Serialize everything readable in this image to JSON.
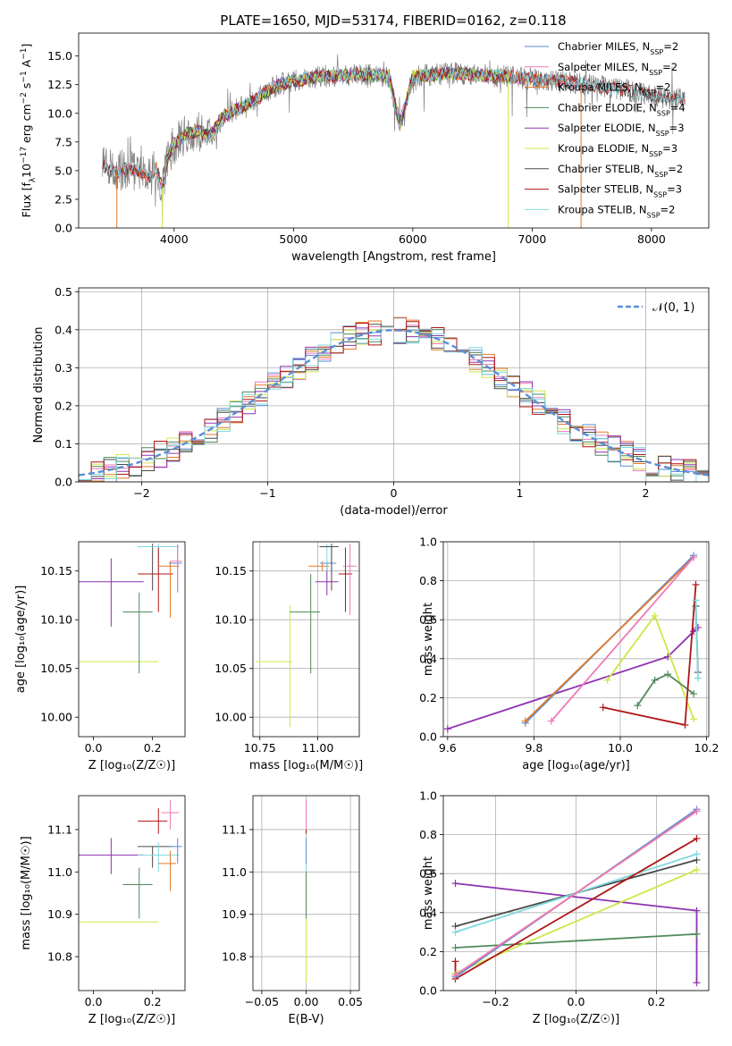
{
  "figure": {
    "title": "PLATE=1650, MJD=53174, FIBERID=0162, z=0.118"
  },
  "colors": {
    "Chabrier MILES": "#5b8ed6",
    "Salpeter MILES": "#ee7ab8",
    "Kroupa MILES": "#e07a2a",
    "Chabrier ELODIE": "#4f8a5c",
    "Salpeter ELODIE": "#8e33b0",
    "Kroupa ELODIE": "#cde84a",
    "Chabrier STELIB": "#4a4a4a",
    "Salpeter STELIB": "#b01515",
    "Kroupa STELIB": "#7fd8e0",
    "normal": "#5b8ed6"
  },
  "chart_data": [
    {
      "id": "spectrum",
      "type": "line",
      "title": "PLATE=1650, MJD=53174, FIBERID=0162, z=0.118",
      "xlabel": "wavelength [Angstrom, rest frame]",
      "ylabel": "Flux [f_λ 10^-17 erg cm^-2 s^-1 A^-1]",
      "xlim": [
        3200,
        8480
      ],
      "ylim": [
        0,
        17
      ],
      "xticks": [
        4000,
        5000,
        6000,
        7000,
        8000
      ],
      "yticks": [
        0.0,
        2.5,
        5.0,
        7.5,
        10.0,
        12.5,
        15.0
      ],
      "grid": false,
      "legend_position": "top-right",
      "observed_spectrum": {
        "x_range": [
          3400,
          8280
        ],
        "points": 1400
      },
      "continuum": {
        "x": [
          3400,
          3500,
          3600,
          3700,
          3800,
          3850,
          3900,
          3950,
          4000,
          4100,
          4200,
          4300,
          4400,
          4500,
          4600,
          4700,
          4800,
          4900,
          5000,
          5200,
          5400,
          5600,
          5800,
          5890,
          6000,
          6200,
          6400,
          6600,
          6800,
          7000,
          7200,
          7400,
          7600,
          7800,
          8000,
          8280
        ],
        "y": [
          5.4,
          4.8,
          5.2,
          5.0,
          4.4,
          5.3,
          3.5,
          6.3,
          7.3,
          8.2,
          8.4,
          8.0,
          9.6,
          10.2,
          10.7,
          11.3,
          12.1,
          12.6,
          12.8,
          13.2,
          13.3,
          13.4,
          13.2,
          9.0,
          13.2,
          13.4,
          13.5,
          13.3,
          13.2,
          13.0,
          12.8,
          12.6,
          12.3,
          12.0,
          11.5,
          11.2
        ]
      },
      "series": [
        {
          "name": "Chabrier MILES",
          "nssp": "2",
          "x_range": [
            3520,
            7410
          ]
        },
        {
          "name": "Salpeter MILES",
          "nssp": "2",
          "x_range": [
            3520,
            7410
          ]
        },
        {
          "name": "Kroupa MILES",
          "nssp": "2",
          "x_range": [
            3520,
            7410
          ]
        },
        {
          "name": "Chabrier ELODIE",
          "nssp": "4",
          "x_range": [
            3900,
            6800
          ]
        },
        {
          "name": "Salpeter ELODIE",
          "nssp": "3",
          "x_range": [
            3900,
            6800
          ]
        },
        {
          "name": "Kroupa ELODIE",
          "nssp": "3",
          "x_range": [
            3900,
            6800
          ]
        },
        {
          "name": "Chabrier STELIB",
          "nssp": "2",
          "x_range": [
            3400,
            8280
          ]
        },
        {
          "name": "Salpeter STELIB",
          "nssp": "3",
          "x_range": [
            3400,
            8280
          ]
        },
        {
          "name": "Kroupa STELIB",
          "nssp": "2",
          "x_range": [
            3400,
            8280
          ]
        }
      ],
      "vertical_edges": [
        {
          "x": 3520,
          "series": "Kroupa MILES"
        },
        {
          "x": 3900,
          "series": "Kroupa ELODIE"
        },
        {
          "x": 6800,
          "series": "Kroupa ELODIE"
        },
        {
          "x": 7410,
          "series": "Kroupa MILES"
        }
      ]
    },
    {
      "id": "residuals",
      "type": "line",
      "xlabel": "(data-model)/error",
      "ylabel": "Normed distribution",
      "xlim": [
        -2.5,
        2.5
      ],
      "ylim": [
        0,
        0.51
      ],
      "xticks": [
        -2,
        -1,
        0,
        1,
        2
      ],
      "yticks": [
        0.0,
        0.1,
        0.2,
        0.3,
        0.4,
        0.5
      ],
      "grid": true,
      "legend_position": "top-right",
      "histogram_bins": {
        "start": -2.5,
        "width": 0.1,
        "count": 50
      },
      "series": [
        {
          "name": "N(0,1)",
          "label_prefix": "𝒩(0, 1)",
          "type": "gaussian",
          "mean": 0,
          "sigma": 1,
          "style": "dashed"
        }
      ],
      "histograms": [
        "Chabrier MILES",
        "Salpeter MILES",
        "Kroupa MILES",
        "Chabrier ELODIE",
        "Salpeter ELODIE",
        "Kroupa ELODIE",
        "Chabrier STELIB",
        "Salpeter STELIB",
        "Kroupa STELIB"
      ]
    },
    {
      "id": "age_vs_Z",
      "type": "scatter",
      "xlabel": "Z [log₁₀(Z/Z☉)]",
      "ylabel": "age  [log₁₀(age/yr)]",
      "xlim": [
        -0.05,
        0.31
      ],
      "ylim": [
        9.98,
        10.18
      ],
      "xticks": [
        0.0,
        0.2
      ],
      "yticks": [
        10.0,
        10.05,
        10.1,
        10.15
      ],
      "grid": false,
      "points": [
        {
          "series": "Kroupa ELODIE",
          "x": -0.05,
          "x_hi": 0.22,
          "y": 10.057,
          "y_lo": 9.99,
          "y_hi": 10.118
        },
        {
          "series": "Salpeter ELODIE",
          "x": 0.06,
          "x_lo": -0.05,
          "x_hi": 0.17,
          "y": 10.139,
          "y_lo": 10.093,
          "y_hi": 10.163
        },
        {
          "series": "Chabrier ELODIE",
          "x": 0.155,
          "x_lo": 0.1,
          "x_hi": 0.2,
          "y": 10.108,
          "y_lo": 10.045,
          "y_hi": 10.128
        },
        {
          "series": "Chabrier STELIB",
          "x": 0.2,
          "x_lo": 0.15,
          "x_hi": 0.27,
          "y": 10.175,
          "y_lo": 10.13,
          "y_hi": 10.178
        },
        {
          "series": "Kroupa STELIB",
          "x": 0.22,
          "x_lo": 0.15,
          "x_hi": 0.29,
          "y": 10.175,
          "y_lo": 10.15,
          "y_hi": 10.178
        },
        {
          "series": "Salpeter STELIB",
          "x": 0.22,
          "x_lo": 0.15,
          "x_hi": 0.27,
          "y": 10.147,
          "y_lo": 10.108,
          "y_hi": 10.174
        },
        {
          "series": "Kroupa MILES",
          "x": 0.26,
          "x_lo": 0.22,
          "x_hi": 0.29,
          "y": 10.155,
          "y_lo": 10.102,
          "y_hi": 10.16
        },
        {
          "series": "Chabrier MILES",
          "x": 0.285,
          "x_lo": 0.255,
          "x_hi": 0.3,
          "y": 10.158,
          "y_lo": 10.128,
          "y_hi": 10.175
        },
        {
          "series": "Salpeter MILES",
          "x": 0.285,
          "x_lo": 0.26,
          "x_hi": 0.3,
          "y": 10.16,
          "y_lo": 10.13,
          "y_hi": 10.178
        }
      ]
    },
    {
      "id": "age_vs_mass",
      "type": "scatter",
      "xlabel": "mass [log₁₀(M/M☉)]",
      "ylabel": "",
      "xlim": [
        10.72,
        11.18
      ],
      "ylim": [
        9.98,
        10.18
      ],
      "xticks": [
        10.75,
        11.0
      ],
      "yticks": [
        10.0,
        10.05,
        10.1,
        10.15
      ],
      "grid": true,
      "points": [
        {
          "series": "Kroupa ELODIE",
          "x": 10.88,
          "x_lo": 10.73,
          "x_hi": 10.89,
          "y": 10.057,
          "y_lo": 9.99,
          "y_hi": 10.115
        },
        {
          "series": "Chabrier ELODIE",
          "x": 10.97,
          "x_lo": 10.88,
          "x_hi": 11.01,
          "y": 10.108,
          "y_lo": 10.045,
          "y_hi": 10.147
        },
        {
          "series": "Salpeter ELODIE",
          "x": 11.04,
          "x_lo": 10.99,
          "x_hi": 11.09,
          "y": 10.139,
          "y_lo": 10.125,
          "y_hi": 10.16
        },
        {
          "series": "Kroupa MILES",
          "x": 11.02,
          "x_lo": 10.96,
          "x_hi": 11.05,
          "y": 10.155,
          "y_lo": 10.15,
          "y_hi": 10.16
        },
        {
          "series": "Chabrier MILES",
          "x": 11.06,
          "x_lo": 11.01,
          "x_hi": 11.08,
          "y": 10.158,
          "y_lo": 10.15,
          "y_hi": 10.175
        },
        {
          "series": "Kroupa STELIB",
          "x": 11.04,
          "x_lo": 11.0,
          "x_hi": 11.07,
          "y": 10.175,
          "y_lo": 10.15,
          "y_hi": 10.178
        },
        {
          "series": "Chabrier STELIB",
          "x": 11.06,
          "x_lo": 11.01,
          "x_hi": 11.09,
          "y": 10.175,
          "y_lo": 10.13,
          "y_hi": 10.178
        },
        {
          "series": "Salpeter STELIB",
          "x": 11.12,
          "x_lo": 11.09,
          "x_hi": 11.15,
          "y": 10.147,
          "y_lo": 10.108,
          "y_hi": 10.174
        },
        {
          "series": "Salpeter MILES",
          "x": 11.14,
          "x_lo": 11.11,
          "x_hi": 11.17,
          "y": 10.155,
          "y_lo": 10.105,
          "y_hi": 10.178
        }
      ]
    },
    {
      "id": "weight_vs_age",
      "type": "line",
      "xlabel": "age  [log₁₀(age/yr)]",
      "ylabel": "mass weight",
      "xlim": [
        9.59,
        10.205
      ],
      "ylim": [
        0,
        1.0
      ],
      "xticks": [
        9.6,
        9.8,
        10.0,
        10.2
      ],
      "yticks": [
        0.0,
        0.2,
        0.4,
        0.6,
        0.8,
        1.0
      ],
      "grid": true,
      "series": [
        {
          "name": "Salpeter ELODIE",
          "x": [
            9.6,
            10.11,
            10.17,
            10.18
          ],
          "y": [
            0.04,
            0.41,
            0.54,
            0.56
          ]
        },
        {
          "name": "Chabrier MILES",
          "x": [
            9.78,
            10.17
          ],
          "y": [
            0.07,
            0.93
          ]
        },
        {
          "name": "Kroupa MILES",
          "x": [
            9.78,
            10.17
          ],
          "y": [
            0.08,
            0.92
          ]
        },
        {
          "name": "Salpeter MILES",
          "x": [
            9.84,
            10.17
          ],
          "y": [
            0.08,
            0.92
          ]
        },
        {
          "name": "Kroupa ELODIE",
          "x": [
            9.97,
            10.08,
            10.17
          ],
          "y": [
            0.29,
            0.62,
            0.09
          ]
        },
        {
          "name": "Chabrier ELODIE",
          "x": [
            10.04,
            10.08,
            10.11,
            10.17
          ],
          "y": [
            0.16,
            0.29,
            0.32,
            0.22
          ]
        },
        {
          "name": "Salpeter STELIB",
          "x": [
            9.96,
            10.15,
            10.175
          ],
          "y": [
            0.15,
            0.06,
            0.78
          ]
        },
        {
          "name": "Chabrier STELIB",
          "x": [
            10.175,
            10.18
          ],
          "y": [
            0.67,
            0.33
          ]
        },
        {
          "name": "Kroupa STELIB",
          "x": [
            10.175,
            10.18
          ],
          "y": [
            0.7,
            0.3
          ]
        }
      ]
    },
    {
      "id": "mass_vs_Z",
      "type": "scatter",
      "xlabel": "Z [log₁₀(Z/Z☉)]",
      "ylabel": "mass [log₁₀(M/M☉)]",
      "xlim": [
        -0.05,
        0.31
      ],
      "ylim": [
        10.72,
        11.18
      ],
      "xticks": [
        0.0,
        0.2
      ],
      "yticks": [
        10.8,
        10.9,
        11.0,
        11.1
      ],
      "grid": false,
      "points": [
        {
          "series": "Kroupa ELODIE",
          "x": -0.05,
          "x_hi": 0.22,
          "y": 10.882,
          "y_lo": 10.74,
          "y_hi": 10.92
        },
        {
          "series": "Salpeter ELODIE",
          "x": 0.06,
          "x_lo": -0.05,
          "x_hi": 0.17,
          "y": 11.04,
          "y_lo": 10.995,
          "y_hi": 11.08
        },
        {
          "series": "Chabrier ELODIE",
          "x": 0.155,
          "x_lo": 0.1,
          "x_hi": 0.2,
          "y": 10.97,
          "y_lo": 10.89,
          "y_hi": 11.01
        },
        {
          "series": "Chabrier STELIB",
          "x": 0.2,
          "x_lo": 0.15,
          "x_hi": 0.27,
          "y": 11.06,
          "y_lo": 11.01,
          "y_hi": 11.06
        },
        {
          "series": "Kroupa STELIB",
          "x": 0.22,
          "x_lo": 0.15,
          "x_hi": 0.29,
          "y": 11.04,
          "y_lo": 11.0,
          "y_hi": 11.07
        },
        {
          "series": "Salpeter STELIB",
          "x": 0.22,
          "x_lo": 0.15,
          "x_hi": 0.25,
          "y": 11.12,
          "y_lo": 11.09,
          "y_hi": 11.15
        },
        {
          "series": "Kroupa MILES",
          "x": 0.26,
          "x_lo": 0.22,
          "x_hi": 0.28,
          "y": 11.02,
          "y_lo": 10.955,
          "y_hi": 11.05
        },
        {
          "series": "Chabrier MILES",
          "x": 0.285,
          "x_lo": 0.255,
          "x_hi": 0.3,
          "y": 11.06,
          "y_lo": 11.02,
          "y_hi": 11.08
        },
        {
          "series": "Salpeter MILES",
          "x": 0.26,
          "x_lo": 0.23,
          "x_hi": 0.29,
          "y": 11.14,
          "y_lo": 11.1,
          "y_hi": 11.17
        }
      ]
    },
    {
      "id": "mass_vs_ebv",
      "type": "scatter",
      "xlabel": "E(B-V)",
      "ylabel": "",
      "xlim": [
        -0.06,
        0.06
      ],
      "ylim": [
        10.72,
        11.18
      ],
      "xticks": [
        -0.05,
        0.0,
        0.05
      ],
      "yticks": [
        10.8,
        10.9,
        11.0,
        11.1
      ],
      "grid": true,
      "points": [
        {
          "series": "Kroupa ELODIE",
          "x": 0.0,
          "y": 10.88,
          "y_lo": 10.74,
          "y_hi": 10.92
        },
        {
          "series": "Chabrier ELODIE",
          "x": 0.0,
          "y": 10.97,
          "y_lo": 10.89,
          "y_hi": 11.01
        },
        {
          "series": "Kroupa STELIB",
          "x": 0.0,
          "y": 11.04,
          "y_lo": 11.0,
          "y_hi": 11.07
        },
        {
          "series": "Chabrier MILES",
          "x": 0.0,
          "y": 11.06,
          "y_lo": 11.02,
          "y_hi": 11.08
        },
        {
          "series": "Salpeter STELIB",
          "x": 0.0,
          "y": 11.12,
          "y_lo": 11.09,
          "y_hi": 11.15
        },
        {
          "series": "Salpeter MILES",
          "x": 0.0,
          "y": 11.14,
          "y_lo": 11.1,
          "y_hi": 11.17
        }
      ]
    },
    {
      "id": "weight_vs_Z",
      "type": "line",
      "xlabel": "Z [log₁₀(Z/Z☉)]",
      "ylabel": "mass weight",
      "xlim": [
        -0.33,
        0.33
      ],
      "ylim": [
        0,
        1.0
      ],
      "xticks": [
        -0.2,
        0.0,
        0.2
      ],
      "yticks": [
        0.0,
        0.2,
        0.4,
        0.6,
        0.8,
        1.0
      ],
      "grid": true,
      "series": [
        {
          "name": "Salpeter ELODIE",
          "x": [
            -0.3,
            0.3,
            0.3
          ],
          "y": [
            0.55,
            0.41,
            0.04
          ]
        },
        {
          "name": "Chabrier STELIB",
          "x": [
            -0.3,
            0.3
          ],
          "y": [
            0.33,
            0.67
          ]
        },
        {
          "name": "Kroupa STELIB",
          "x": [
            -0.3,
            0.3
          ],
          "y": [
            0.3,
            0.7
          ]
        },
        {
          "name": "Chabrier ELODIE",
          "x": [
            -0.3,
            0.3
          ],
          "y": [
            0.22,
            0.29
          ]
        },
        {
          "name": "Kroupa ELODIE",
          "x": [
            -0.3,
            0.3
          ],
          "y": [
            0.09,
            0.62
          ]
        },
        {
          "name": "Salpeter STELIB",
          "x": [
            -0.3,
            -0.3,
            0.3
          ],
          "y": [
            0.15,
            0.06,
            0.78
          ]
        },
        {
          "name": "Chabrier MILES",
          "x": [
            -0.3,
            0.3
          ],
          "y": [
            0.07,
            0.93
          ]
        },
        {
          "name": "Kroupa MILES",
          "x": [
            -0.3,
            0.3
          ],
          "y": [
            0.08,
            0.92
          ]
        },
        {
          "name": "Salpeter MILES",
          "x": [
            -0.3,
            0.3
          ],
          "y": [
            0.08,
            0.92
          ]
        }
      ]
    }
  ]
}
